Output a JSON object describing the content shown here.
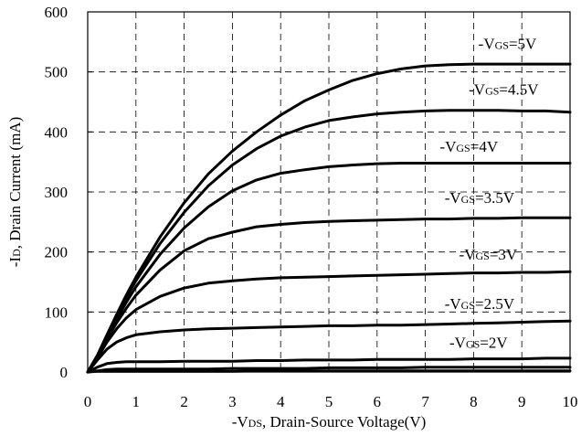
{
  "chart_data": {
    "type": "line",
    "title": "",
    "xlabel": {
      "pre": "-V",
      "sub": "DS",
      "post": ", Drain-Source Voltage(V)"
    },
    "ylabel": {
      "pre": "-I",
      "sub": "D",
      "post": ", Drain Current (mA)"
    },
    "xlim": [
      0,
      10
    ],
    "ylim": [
      0,
      600
    ],
    "x_ticks": [
      "0",
      "1",
      "2",
      "3",
      "4",
      "5",
      "6",
      "7",
      "8",
      "9",
      "10"
    ],
    "y_ticks": [
      "0",
      "100",
      "200",
      "300",
      "400",
      "500",
      "600"
    ],
    "grid": true,
    "x": [
      0,
      0.2,
      0.4,
      0.6,
      0.8,
      1,
      1.5,
      2,
      2.5,
      3,
      3.5,
      4,
      4.5,
      5,
      5.5,
      6,
      6.5,
      7,
      7.5,
      8,
      8.5,
      9,
      9.5,
      10
    ],
    "series": [
      {
        "name": {
          "pre": "-V",
          "sub": "GS",
          "post": "=5V"
        },
        "label_at": [
          8.1,
          538
        ],
        "values": [
          0,
          28,
          62,
          96,
          128,
          158,
          225,
          282,
          330,
          368,
          400,
          428,
          452,
          470,
          486,
          497,
          505,
          510,
          512,
          513,
          513,
          513,
          513,
          513
        ]
      },
      {
        "name": {
          "pre": "-V",
          "sub": "GS",
          "post": "=4.5V"
        },
        "label_at": [
          7.9,
          462
        ],
        "values": [
          0,
          27,
          60,
          93,
          124,
          152,
          214,
          266,
          310,
          345,
          372,
          393,
          408,
          419,
          425,
          430,
          433,
          435,
          436,
          436,
          436,
          435,
          435,
          433
        ]
      },
      {
        "name": {
          "pre": "-V",
          "sub": "GS",
          "post": "=4V"
        },
        "label_at": [
          7.3,
          367
        ],
        "values": [
          0,
          26,
          58,
          88,
          116,
          142,
          196,
          240,
          275,
          302,
          320,
          331,
          337,
          342,
          345,
          347,
          348,
          348,
          348,
          348,
          348,
          348,
          348,
          348
        ]
      },
      {
        "name": {
          "pre": "-V",
          "sub": "GS",
          "post": "=3.5V"
        },
        "label_at": [
          7.4,
          282
        ],
        "values": [
          0,
          25,
          55,
          82,
          106,
          128,
          170,
          202,
          222,
          233,
          242,
          246,
          249,
          251,
          252,
          253,
          254,
          255,
          255,
          256,
          256,
          257,
          257,
          257
        ]
      },
      {
        "name": {
          "pre": "-V",
          "sub": "GS",
          "post": "=3V"
        },
        "label_at": [
          7.7,
          187
        ],
        "values": [
          0,
          23,
          50,
          72,
          90,
          104,
          126,
          140,
          148,
          152,
          155,
          157,
          158,
          159,
          160,
          161,
          162,
          163,
          164,
          165,
          165,
          166,
          166,
          167
        ]
      },
      {
        "name": {
          "pre": "-V",
          "sub": "GS",
          "post": "=2.5V"
        },
        "label_at": [
          7.4,
          105
        ],
        "values": [
          0,
          20,
          38,
          50,
          57,
          62,
          67,
          70,
          72,
          73,
          74,
          75,
          76,
          77,
          77,
          78,
          78,
          79,
          80,
          81,
          82,
          83,
          84,
          85
        ]
      },
      {
        "name": {
          "pre": "-V",
          "sub": "GS",
          "post": "=2V"
        },
        "label_at": [
          7.5,
          40
        ],
        "values": [
          0,
          8,
          14,
          16,
          17,
          17,
          17,
          18,
          18,
          18,
          19,
          19,
          20,
          20,
          20,
          21,
          21,
          21,
          21,
          22,
          22,
          22,
          23,
          23
        ]
      },
      {
        "name": "",
        "values": [
          0,
          2,
          4,
          5,
          5,
          5,
          5,
          5,
          5,
          6,
          6,
          6,
          6,
          7,
          7,
          7,
          7,
          8,
          8,
          8,
          8,
          8,
          8,
          8
        ]
      },
      {
        "name": "",
        "values": [
          0,
          1,
          1,
          1,
          1,
          1,
          1,
          1,
          1,
          1,
          2,
          2,
          2,
          2,
          2,
          2,
          2,
          2,
          2,
          2,
          2,
          2,
          2,
          2
        ]
      }
    ]
  }
}
